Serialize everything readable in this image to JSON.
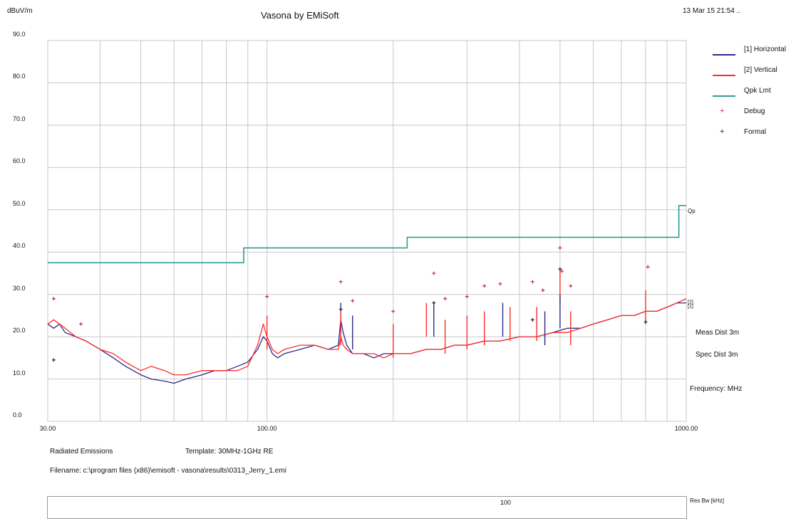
{
  "header": {
    "y_unit": "dBuV/m",
    "title": "Vasona by EMiSoft",
    "timestamp": "13 Mar 15 21:54 .."
  },
  "legend": [
    {
      "label": "[1] Horizontal",
      "color": "#2b2a8a",
      "kind": "line"
    },
    {
      "label": "[2] Vertical",
      "color": "#ff2b2b",
      "kind": "line"
    },
    {
      "label": "Qpk Lmt",
      "color": "#2f9d8f",
      "kind": "line"
    },
    {
      "label": "Debug",
      "color": "#c0304a",
      "kind": "marker",
      "symbol": "+"
    },
    {
      "label": "Formal",
      "color": "#222222",
      "kind": "marker",
      "symbol": "+"
    }
  ],
  "side_info": {
    "meas_dist": "Meas Dist 3m",
    "spec_dist": "Spec Dist 3m",
    "frequency": "Frequency: MHz"
  },
  "footer": {
    "test_type": "Radiated Emissions",
    "template": "Template: 30MHz-1GHz RE",
    "filename": "Filename: c:\\program files (x86)\\emisoft - vasona\\results\\0313_Jerry_1.emi",
    "res_bw_label": "Res Bw [kHz]",
    "res_bw_value": "100"
  },
  "chart_data": {
    "type": "line",
    "xlabel": "Frequency: MHz",
    "ylabel": "dBuV/m",
    "x_scale": "log",
    "xlim": [
      30,
      1000
    ],
    "ylim": [
      0,
      90
    ],
    "x_tick_labels": [
      "30.00",
      "100.00",
      "1000.00"
    ],
    "x_ticks": [
      30,
      100,
      1000
    ],
    "y_tick_labels": [
      "0.0",
      "10.0",
      "20.0",
      "30.0",
      "40.0",
      "50.0",
      "60.0",
      "70.0",
      "80.0",
      "90.0"
    ],
    "y_ticks": [
      0,
      10,
      20,
      30,
      40,
      50,
      60,
      70,
      80,
      90
    ],
    "grid": true,
    "legend_position": "right",
    "limit_label": "Qp",
    "trace_end_labels": [
      "[2]",
      "[1]"
    ],
    "series": [
      {
        "name": "[1] Horizontal",
        "color": "#2b2a8a",
        "x": [
          30,
          31,
          32,
          33,
          35,
          37,
          40,
          43,
          46,
          50,
          53,
          57,
          60,
          64,
          70,
          75,
          80,
          85,
          90,
          95,
          98,
          100,
          103,
          106,
          110,
          120,
          130,
          140,
          148,
          150,
          152,
          155,
          160,
          170,
          180,
          190,
          200,
          220,
          240,
          260,
          280,
          300,
          330,
          360,
          400,
          440,
          480,
          520,
          560,
          600,
          650,
          700,
          750,
          800,
          850,
          900,
          950,
          1000
        ],
        "y": [
          23,
          22,
          23,
          21,
          20,
          19,
          17,
          15,
          13,
          11,
          10,
          9.5,
          9,
          10,
          11,
          12,
          12,
          13,
          14,
          17,
          20,
          19,
          16,
          15,
          16,
          17,
          18,
          17,
          18,
          24,
          21,
          18,
          16,
          16,
          15,
          16,
          16,
          16,
          17,
          17,
          18,
          18,
          19,
          19,
          20,
          20,
          21,
          22,
          22,
          23,
          24,
          25,
          25,
          26,
          26,
          27,
          28,
          28
        ]
      },
      {
        "name": "[2] Vertical",
        "color": "#ff2b2b",
        "x": [
          30,
          31,
          32,
          33,
          35,
          37,
          40,
          43,
          46,
          50,
          53,
          57,
          60,
          64,
          70,
          75,
          80,
          85,
          90,
          95,
          98,
          100,
          103,
          106,
          110,
          120,
          130,
          140,
          148,
          150,
          152,
          155,
          160,
          170,
          180,
          190,
          200,
          220,
          240,
          260,
          280,
          300,
          330,
          360,
          400,
          440,
          480,
          520,
          560,
          600,
          650,
          700,
          750,
          800,
          850,
          900,
          950,
          1000
        ],
        "y": [
          23,
          24,
          23,
          22,
          20,
          19,
          17,
          16,
          14,
          12,
          13,
          12,
          11,
          11,
          12,
          12,
          12,
          12,
          13,
          18,
          23,
          20,
          17,
          16,
          17,
          18,
          18,
          17,
          17,
          20,
          18,
          17,
          16,
          16,
          16,
          15,
          16,
          16,
          17,
          17,
          18,
          18,
          19,
          19,
          20,
          20,
          21,
          21,
          22,
          23,
          24,
          25,
          25,
          26,
          26,
          27,
          28,
          29
        ]
      },
      {
        "name": "Qpk Lmt",
        "color": "#2f9d8f",
        "step": true,
        "x": [
          30,
          88,
          88,
          216,
          216,
          960,
          960,
          1000
        ],
        "y": [
          37.5,
          37.5,
          41,
          41,
          43.5,
          43.5,
          51,
          51
        ]
      }
    ],
    "spikes": [
      {
        "x": 100,
        "y": 25,
        "color": "#ff2b2b"
      },
      {
        "x": 150,
        "y": 28,
        "color": "#2b2a8a"
      },
      {
        "x": 150,
        "y": 26,
        "color": "#ff2b2b"
      },
      {
        "x": 160,
        "y": 25,
        "color": "#2b2a8a"
      },
      {
        "x": 200,
        "y": 23,
        "color": "#ff2b2b"
      },
      {
        "x": 240,
        "y": 28,
        "color": "#ff2b2b"
      },
      {
        "x": 250,
        "y": 28,
        "color": "#2b2a8a"
      },
      {
        "x": 266,
        "y": 24,
        "color": "#ff2b2b"
      },
      {
        "x": 300,
        "y": 25,
        "color": "#ff2b2b"
      },
      {
        "x": 330,
        "y": 26,
        "color": "#ff2b2b"
      },
      {
        "x": 365,
        "y": 28,
        "color": "#2b2a8a"
      },
      {
        "x": 380,
        "y": 27,
        "color": "#ff2b2b"
      },
      {
        "x": 440,
        "y": 27,
        "color": "#ff2b2b"
      },
      {
        "x": 460,
        "y": 26,
        "color": "#2b2a8a"
      },
      {
        "x": 500,
        "y": 36,
        "color": "#ff2b2b"
      },
      {
        "x": 500,
        "y": 30,
        "color": "#2b2a8a"
      },
      {
        "x": 530,
        "y": 26,
        "color": "#ff2b2b"
      },
      {
        "x": 800,
        "y": 31,
        "color": "#ff2b2b"
      }
    ],
    "debug_points": [
      {
        "x": 31,
        "y": 29
      },
      {
        "x": 36,
        "y": 23
      },
      {
        "x": 100,
        "y": 29.5
      },
      {
        "x": 150,
        "y": 33
      },
      {
        "x": 160,
        "y": 28.5
      },
      {
        "x": 200,
        "y": 26
      },
      {
        "x": 250,
        "y": 35
      },
      {
        "x": 266,
        "y": 29
      },
      {
        "x": 300,
        "y": 29.5
      },
      {
        "x": 330,
        "y": 32
      },
      {
        "x": 360,
        "y": 32.5
      },
      {
        "x": 430,
        "y": 33
      },
      {
        "x": 455,
        "y": 31
      },
      {
        "x": 500,
        "y": 41
      },
      {
        "x": 505,
        "y": 35.5
      },
      {
        "x": 530,
        "y": 32
      },
      {
        "x": 810,
        "y": 36.5
      }
    ],
    "formal_points": [
      {
        "x": 31,
        "y": 14.5
      },
      {
        "x": 150,
        "y": 26.5
      },
      {
        "x": 250,
        "y": 28
      },
      {
        "x": 430,
        "y": 24
      },
      {
        "x": 500,
        "y": 36
      },
      {
        "x": 800,
        "y": 23.5
      }
    ]
  }
}
